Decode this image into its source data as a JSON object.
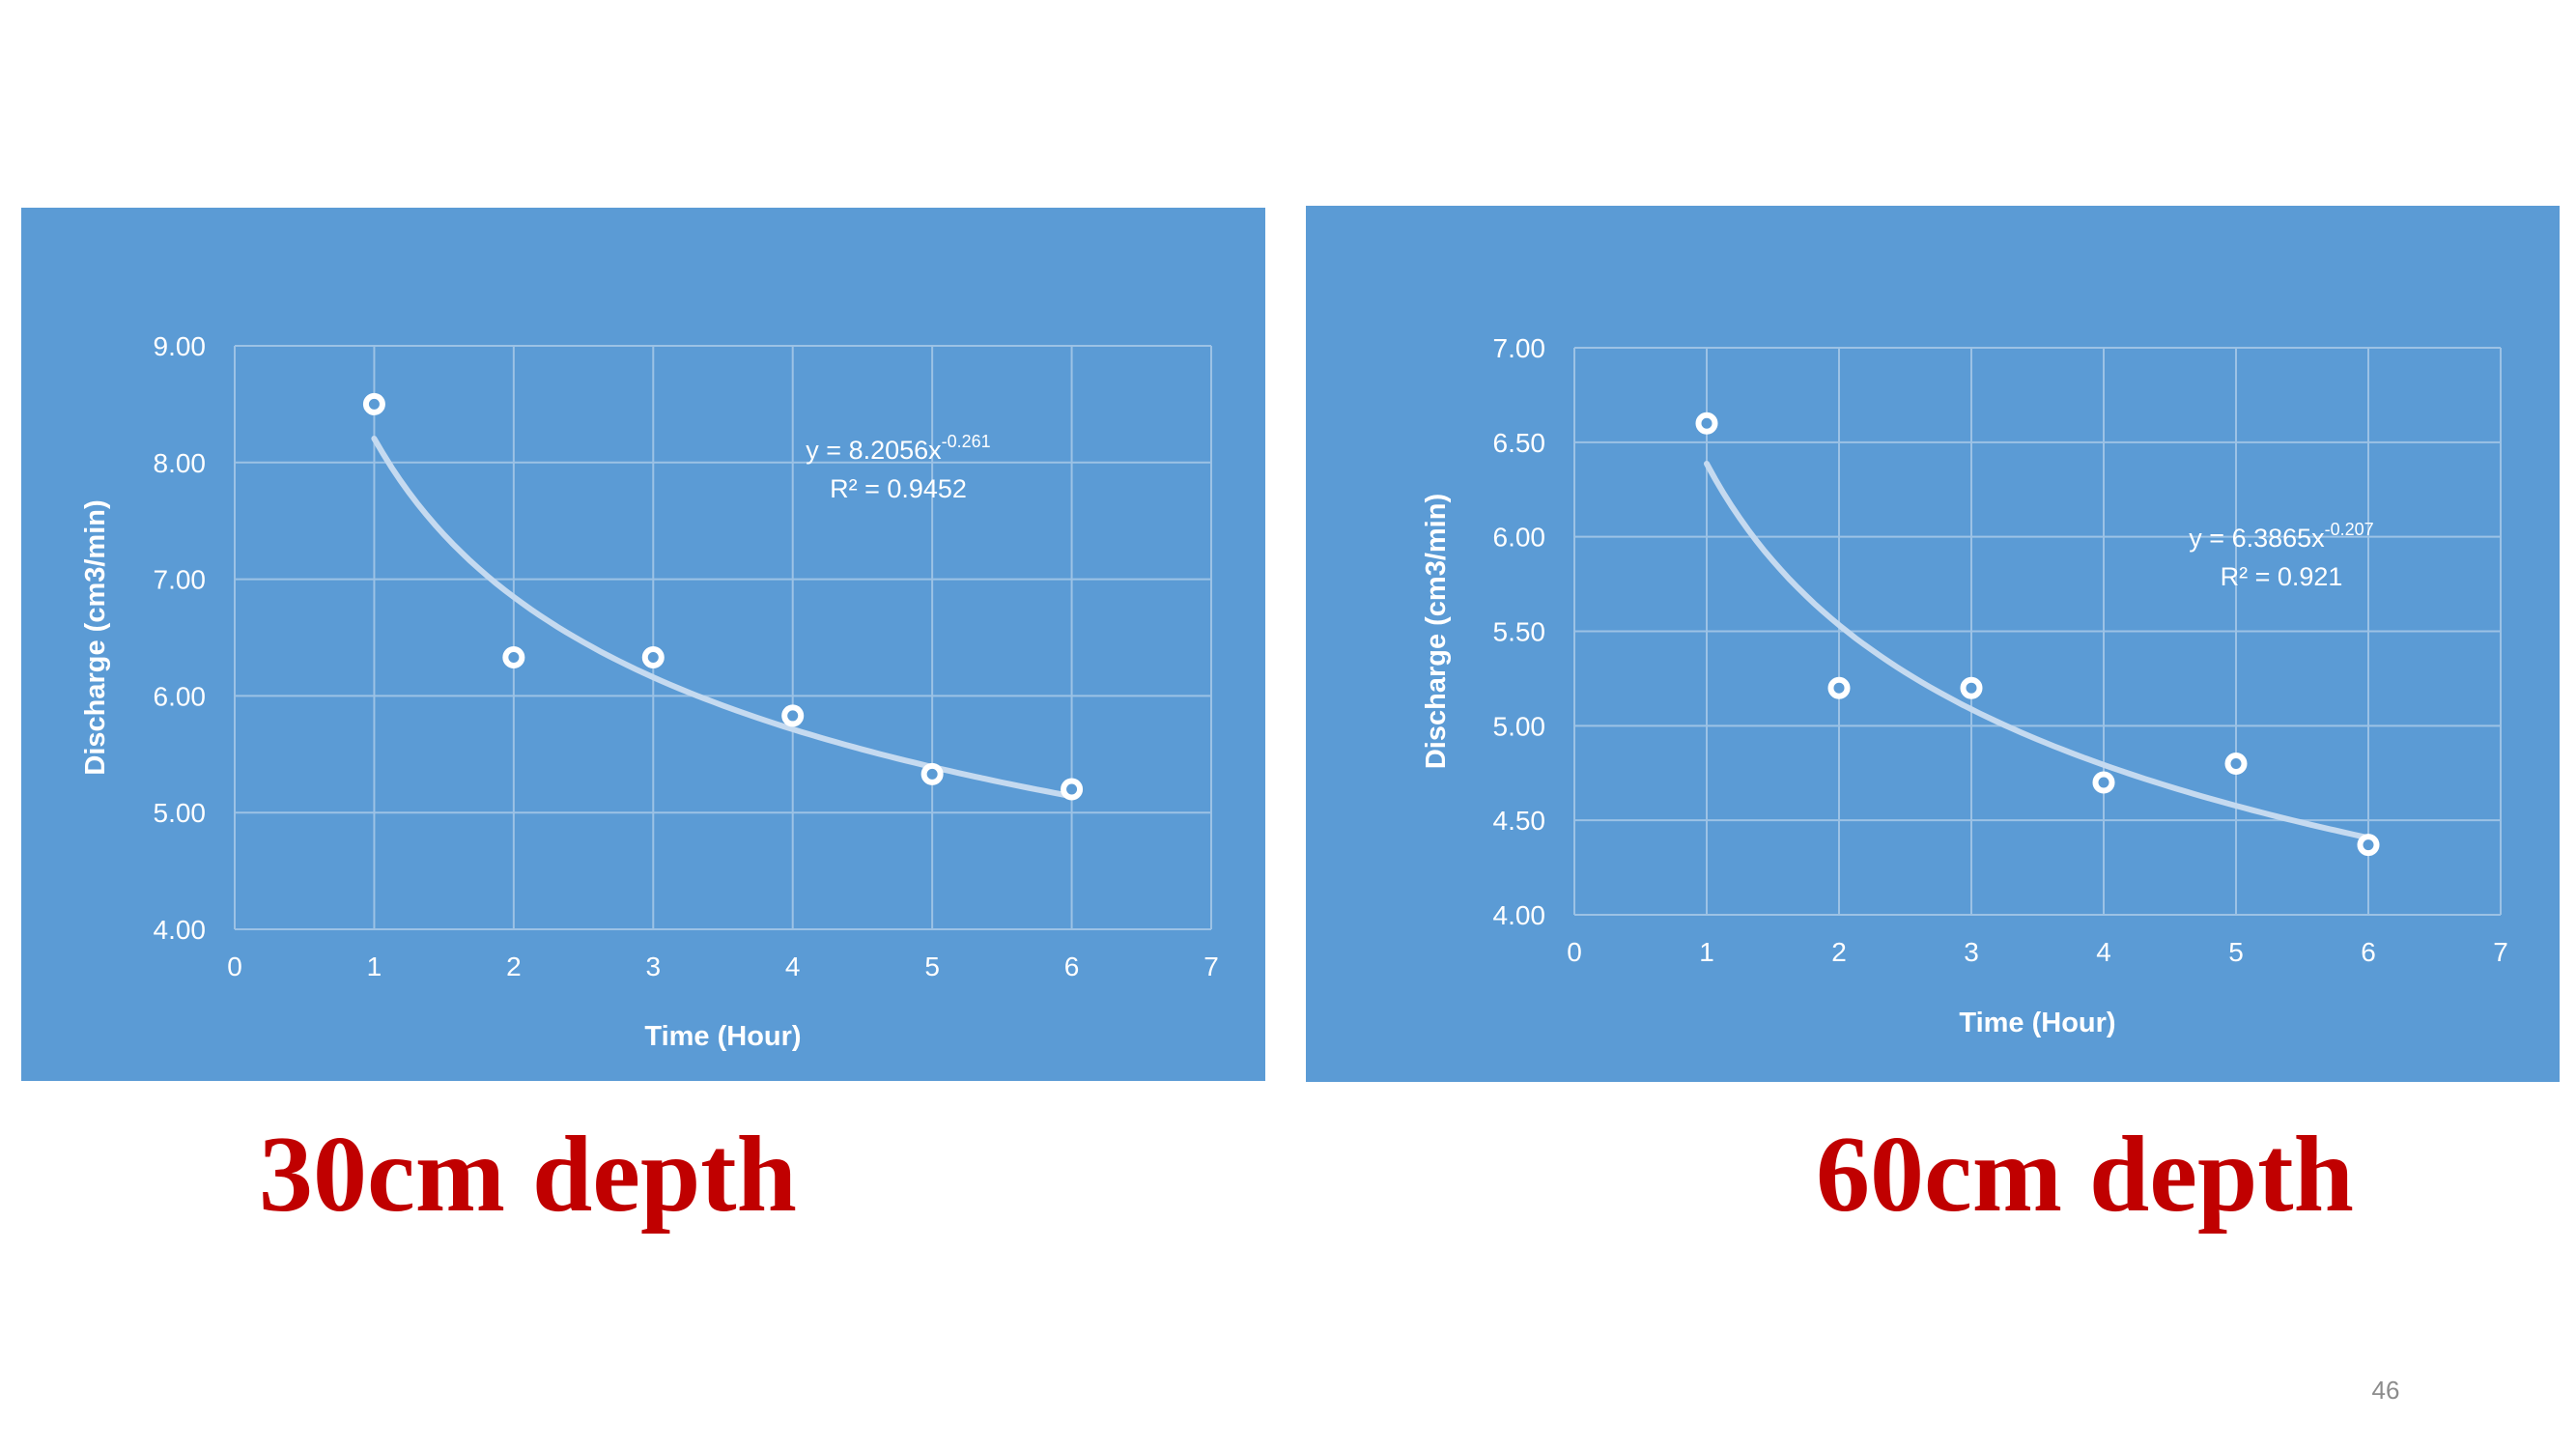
{
  "slide": {
    "page_number": "46",
    "colors": {
      "panel_background": "#5b9bd5",
      "caption_text": "#c00000",
      "grid": "#9cc2e5",
      "trendline": "#c5daf0",
      "marker": "#ffffff"
    }
  },
  "chart_data": [
    {
      "type": "scatter",
      "caption": "30cm depth",
      "xlabel": "Time (Hour)",
      "ylabel": "Discharge (cm3/min)",
      "xlim": [
        0,
        7
      ],
      "ylim": [
        4.0,
        9.0
      ],
      "x_ticks": [
        "0",
        "1",
        "2",
        "3",
        "4",
        "5",
        "6",
        "7"
      ],
      "y_ticks": [
        "4.00",
        "5.00",
        "6.00",
        "7.00",
        "8.00",
        "9.00"
      ],
      "grid": true,
      "series": [
        {
          "x": [
            1,
            2,
            3,
            4,
            5,
            6
          ],
          "y": [
            8.5,
            6.33,
            6.33,
            5.83,
            5.33,
            5.2
          ]
        }
      ],
      "trendline": {
        "type": "power",
        "a": 8.2056,
        "b": -0.261,
        "equation_prefix": "y = 8.2056x",
        "equation_exponent": "-0.261",
        "r2_label": "R² = 0.9452"
      }
    },
    {
      "type": "scatter",
      "caption": "60cm depth",
      "xlabel": "Time (Hour)",
      "ylabel": "Discharge (cm3/min)",
      "xlim": [
        0,
        7
      ],
      "ylim": [
        4.0,
        7.0
      ],
      "x_ticks": [
        "0",
        "1",
        "2",
        "3",
        "4",
        "5",
        "6",
        "7"
      ],
      "y_ticks": [
        "4.00",
        "4.50",
        "5.00",
        "5.50",
        "6.00",
        "6.50",
        "7.00"
      ],
      "grid": true,
      "series": [
        {
          "x": [
            1,
            2,
            3,
            4,
            5,
            6
          ],
          "y": [
            6.6,
            5.2,
            5.2,
            4.7,
            4.8,
            4.37
          ]
        }
      ],
      "trendline": {
        "type": "power",
        "a": 6.3865,
        "b": -0.207,
        "equation_prefix": "y = 6.3865x",
        "equation_exponent": "-0.207",
        "r2_label": "R² = 0.921"
      }
    }
  ]
}
